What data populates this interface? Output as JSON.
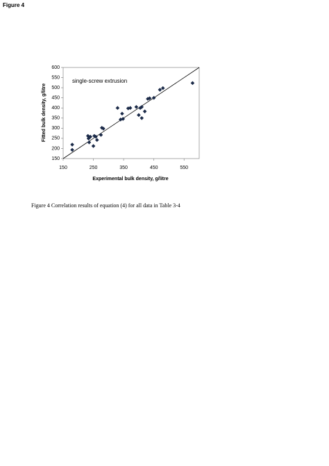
{
  "header": {
    "label": "Figure 4"
  },
  "chart_data": {
    "type": "scatter",
    "annotation": "single-screw extrusion",
    "x_label": "Experimental bulk density, g/litre",
    "y_label": "Fitted bulk density, g/litre",
    "x": [
      180,
      180,
      232,
      234,
      236,
      240,
      250,
      253,
      258,
      262,
      275,
      278,
      283,
      330,
      340,
      345,
      348,
      365,
      372,
      392,
      400,
      405,
      410,
      410,
      420,
      430,
      436,
      450,
      470,
      480,
      578
    ],
    "values": [
      219,
      193,
      262,
      249,
      230,
      258,
      212,
      262,
      258,
      242,
      267,
      302,
      298,
      400,
      343,
      372,
      346,
      398,
      400,
      405,
      365,
      400,
      405,
      350,
      383,
      445,
      448,
      450,
      490,
      498,
      523
    ],
    "color": "#1b2a48",
    "xlim": [
      150,
      600
    ],
    "xticks": [
      150,
      250,
      350,
      450,
      550
    ],
    "ylim": [
      150,
      600
    ],
    "yticks": [
      150,
      200,
      250,
      300,
      350,
      400,
      450,
      500,
      550,
      600
    ],
    "grid": false
  },
  "caption": "Figure 4 Correlation results of equation (4) for all data in Table 3-4"
}
